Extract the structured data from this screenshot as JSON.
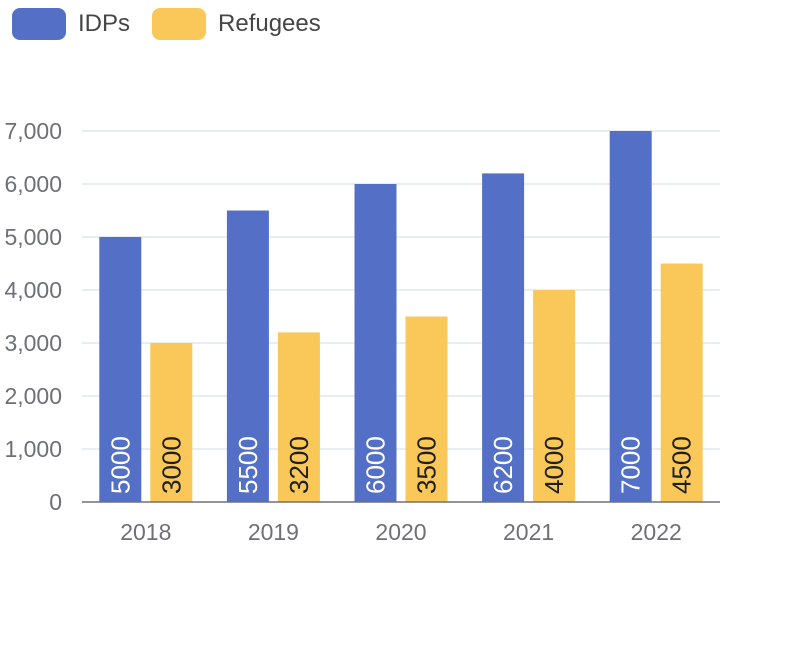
{
  "chart_data": {
    "type": "bar",
    "categories": [
      "2018",
      "2019",
      "2020",
      "2021",
      "2022"
    ],
    "series": [
      {
        "name": "IDPs",
        "values": [
          5000,
          5500,
          6000,
          6200,
          7000
        ],
        "color": "#5470c6",
        "label_color": "#ffffff"
      },
      {
        "name": "Refugees",
        "values": [
          3000,
          3200,
          3500,
          4000,
          4500
        ],
        "color": "#fac858",
        "label_color": "#1f1f1f"
      }
    ],
    "ylim": [
      0,
      7000
    ],
    "yticks": [
      0,
      1000,
      2000,
      3000,
      4000,
      5000,
      6000,
      7000
    ],
    "ytick_labels": [
      "0",
      "1,000",
      "2,000",
      "3,000",
      "4,000",
      "5,000",
      "6,000",
      "7,000"
    ],
    "grid": true,
    "legend_position": "top-left",
    "data_labels": "inside-bottom-rotated"
  }
}
